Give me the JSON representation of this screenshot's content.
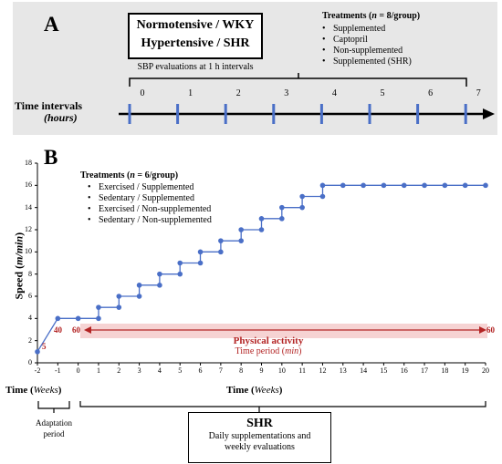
{
  "panelA": {
    "letter": "A",
    "title_line1": "Normotensive / WKY",
    "title_line2": "Hypertensive / SHR",
    "subtitle": "SBP evaluations at 1 h intervals",
    "treatments": {
      "title_pre": "Treatments (",
      "title_n": "n",
      "title_post": " = 8/group)",
      "items": [
        "Supplemented",
        "Captopril",
        "Non-supplemented",
        "Supplemented (SHR)"
      ]
    },
    "time_label": "Time intervals",
    "time_unit": "(hours)",
    "ticks": [
      "0",
      "1",
      "2",
      "3",
      "4",
      "5",
      "6",
      "7"
    ],
    "colors": {
      "background": "#e7e7e7",
      "tick": "#4a6fc7",
      "arrow": "#000000"
    }
  },
  "panelB": {
    "letter": "B",
    "treatments": {
      "title_pre": "Treatments (",
      "title_n": "n",
      "title_post": " = 6/group)",
      "items": [
        "Exercised / Supplemented",
        "Sedentary / Supplemented",
        "Exercised / Non-supplemented",
        "Sedentary / Non-supplemented"
      ]
    },
    "annotations": {
      "start_speed": "5",
      "adapt_end": "40",
      "duration_start": "60",
      "duration_end": "60",
      "physical_activity": "Physical activity",
      "time_period": "Time period (min)"
    },
    "time_weeks_left": "Time (Weeks)",
    "time_weeks_right": "Time (Weeks)",
    "adaptation_label_line1": "Adaptation",
    "adaptation_label_line2": "period",
    "shr_title": "SHR",
    "shr_line1": "Daily supplementations and",
    "shr_line2": "weekly evaluations",
    "colors": {
      "series": "#4a6fc7",
      "arrow": "#b32424",
      "band": "#f6d3d3",
      "duration_text": "#b32424"
    }
  },
  "chart_data": {
    "type": "line",
    "title": "",
    "xlabel": "Time (Weeks)",
    "ylabel": "Speed (m/min)",
    "xlim": [
      -2,
      20
    ],
    "ylim": [
      0,
      18
    ],
    "x_ticks": [
      -2,
      -1,
      0,
      1,
      2,
      3,
      4,
      5,
      6,
      7,
      8,
      9,
      10,
      11,
      12,
      13,
      14,
      15,
      16,
      17,
      18,
      19,
      20
    ],
    "y_ticks": [
      0,
      2,
      4,
      6,
      8,
      10,
      12,
      14,
      16,
      18
    ],
    "grid": false,
    "step_line": true,
    "series": [
      {
        "name": "",
        "x": [
          -2,
          -1,
          0,
          1,
          1,
          2,
          2,
          3,
          3,
          4,
          4,
          5,
          5,
          6,
          6,
          7,
          7,
          8,
          8,
          9,
          9,
          10,
          10,
          11,
          11,
          12,
          12,
          13,
          14,
          15,
          16,
          17,
          18,
          19,
          20
        ],
        "y": [
          1,
          4,
          4,
          4,
          5,
          5,
          6,
          6,
          7,
          7,
          8,
          8,
          9,
          9,
          10,
          10,
          11,
          11,
          12,
          12,
          13,
          13,
          14,
          14,
          15,
          15,
          16,
          16,
          16,
          16,
          16,
          16,
          16,
          16,
          16
        ]
      }
    ]
  }
}
